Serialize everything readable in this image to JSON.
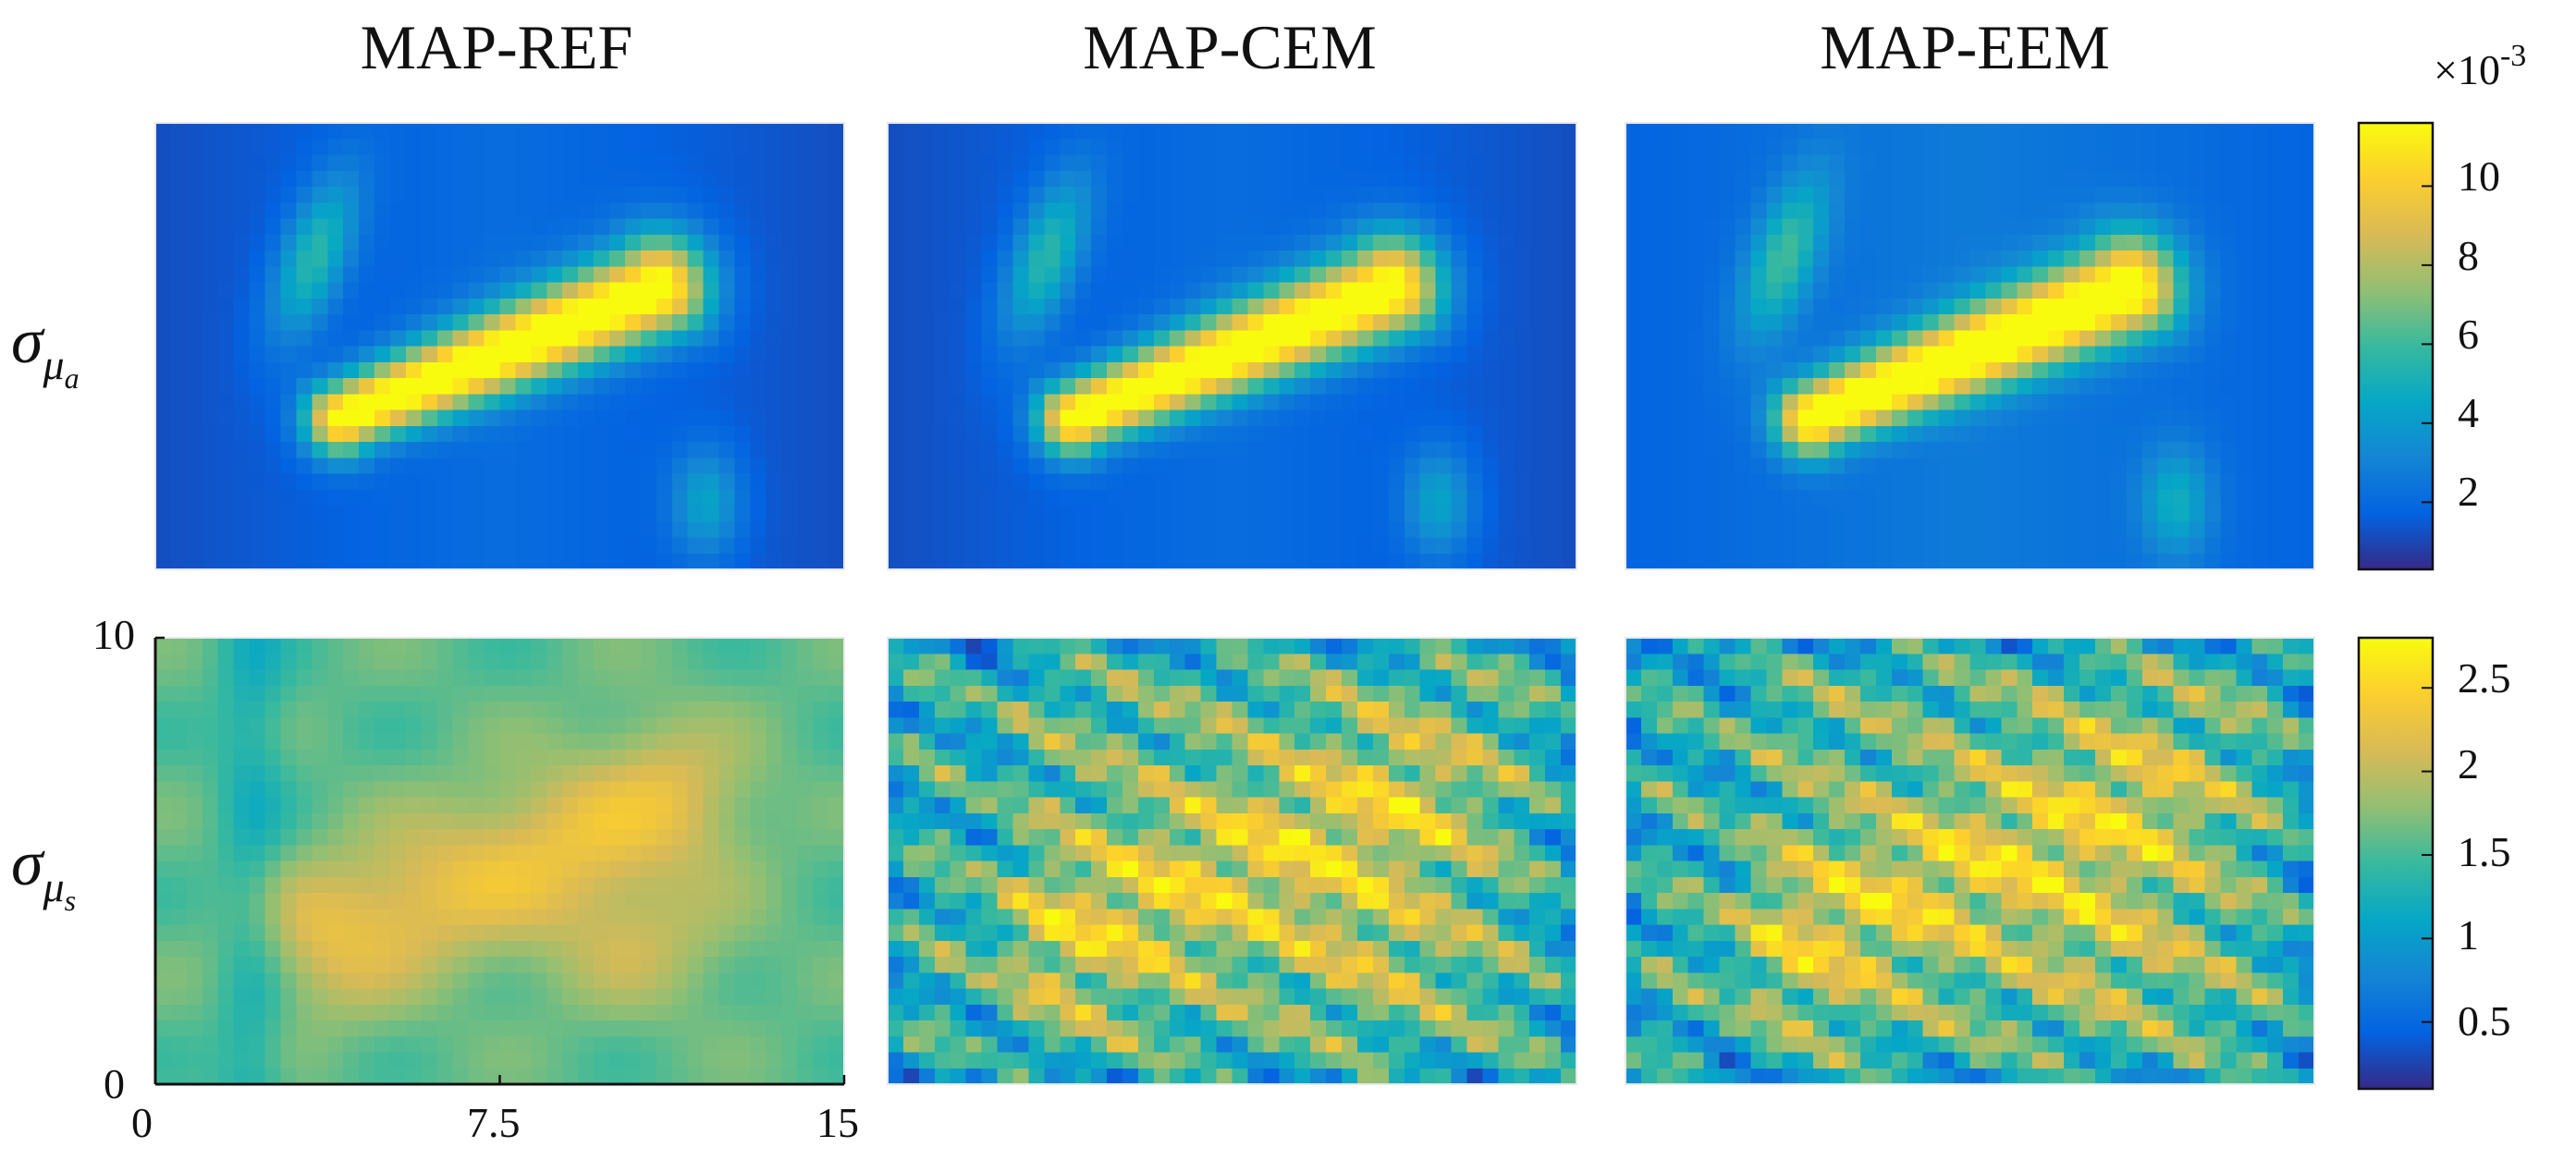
{
  "colors": {
    "parula": [
      "#352a87",
      "#0363e1",
      "#1485d4",
      "#06a7c6",
      "#38b99e",
      "#92bf73",
      "#d9ba56",
      "#fcce2e",
      "#f9fb0e"
    ],
    "axis": "#111111"
  },
  "chart_data": {
    "type": "heatmap",
    "columns": [
      "MAP-REF",
      "MAP-CEM",
      "MAP-EEM"
    ],
    "rows": [
      {
        "label_symbol": "σ",
        "label_sub": "μ",
        "label_subsub": "a",
        "colorbar": {
          "ticks": [
            "2",
            "4",
            "6",
            "8",
            "10"
          ],
          "tick_values": [
            2,
            4,
            6,
            8,
            10
          ],
          "range": [
            0.3,
            11.6
          ],
          "exponent_prefix": "×10",
          "exponent": "-3"
        },
        "fields": [
          {
            "panel": "MAP-REF",
            "pattern": "diagonal inclusion",
            "peak": 11.5,
            "background": 1.5
          },
          {
            "panel": "MAP-CEM",
            "pattern": "diagonal inclusion",
            "peak": 11.3,
            "background": 1.6
          },
          {
            "panel": "MAP-EEM",
            "pattern": "diagonal inclusion",
            "peak": 11.6,
            "background": 1.8
          }
        ]
      },
      {
        "label_symbol": "σ",
        "label_sub": "μ",
        "label_subsub": "s",
        "colorbar": {
          "ticks": [
            "0.5",
            "1",
            "1.5",
            "2",
            "2.5"
          ],
          "tick_values": [
            0.5,
            1,
            1.5,
            2,
            2.5
          ],
          "range": [
            0.1,
            2.8
          ]
        },
        "fields": [
          {
            "panel": "MAP-REF",
            "pattern": "smooth",
            "peak": 2.3,
            "background": 1.4
          },
          {
            "panel": "MAP-CEM",
            "pattern": "speckled",
            "peak": 2.6,
            "background": 1.1
          },
          {
            "panel": "MAP-EEM",
            "pattern": "speckled",
            "peak": 2.6,
            "background": 1.2
          }
        ]
      }
    ],
    "x_ticks": [
      "0",
      "7.5",
      "15"
    ],
    "y_ticks": [
      "0",
      "10"
    ],
    "xlim": [
      0,
      15
    ],
    "ylim": [
      0,
      10
    ]
  }
}
